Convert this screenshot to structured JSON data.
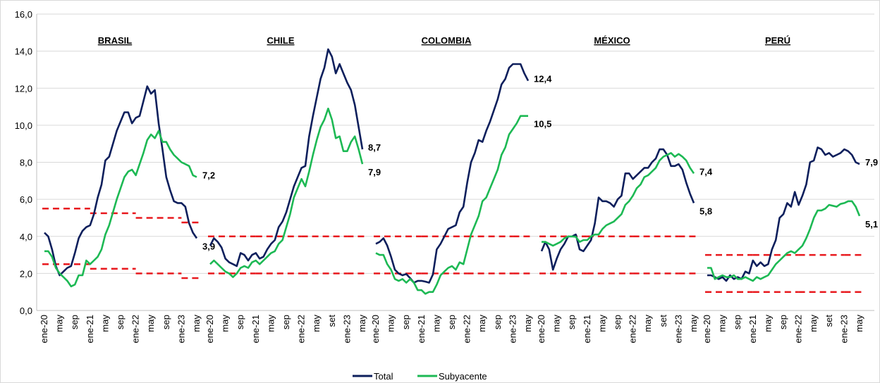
{
  "chart_data": {
    "type": "line",
    "ylim": [
      0,
      16
    ],
    "yticks": [
      {
        "value": 0,
        "label": "0,0"
      },
      {
        "value": 2,
        "label": "2,0"
      },
      {
        "value": 4,
        "label": "4,0"
      },
      {
        "value": 6,
        "label": "6,0"
      },
      {
        "value": 8,
        "label": "8,0"
      },
      {
        "value": 10,
        "label": "10,0"
      },
      {
        "value": 12,
        "label": "12,0"
      },
      {
        "value": 14,
        "label": "14,0"
      },
      {
        "value": 16,
        "label": "16,0"
      }
    ],
    "grid": true,
    "categories": [
      "ene-20",
      null,
      null,
      null,
      "may",
      null,
      null,
      null,
      "sep",
      null,
      null,
      null,
      "ene-21",
      null,
      null,
      null,
      "may",
      null,
      null,
      null,
      "sep",
      null,
      null,
      null,
      "ene-22",
      null,
      null,
      null,
      "may",
      null,
      null,
      null,
      "set",
      null,
      null,
      null,
      "ene-23",
      null,
      null,
      null,
      "may"
    ],
    "series": [
      {
        "name": "Total",
        "color": "#0d1f5c"
      },
      {
        "name": "Subyacente",
        "color": "#1db954"
      }
    ],
    "target_color": "#e8191e",
    "panels": [
      {
        "title": "BRASIL",
        "categories": [
          "ene-20",
          null,
          null,
          null,
          "may",
          null,
          null,
          null,
          "sep",
          null,
          null,
          null,
          "ene-21",
          null,
          null,
          null,
          "may",
          null,
          null,
          null,
          "sep",
          null,
          null,
          null,
          "ene-22",
          null,
          null,
          null,
          "may",
          null,
          null,
          null,
          "sep",
          null,
          null,
          null,
          "ene-23",
          null,
          null,
          null,
          "may"
        ],
        "target_low": [
          2.5,
          2.25,
          2.0,
          1.75
        ],
        "target_high": [
          5.5,
          5.25,
          5.0,
          4.75
        ],
        "series": [
          {
            "values": [
              4.2,
              4.0,
              3.3,
              2.4,
              1.9,
              2.1,
              2.3,
              2.4,
              3.1,
              3.9,
              4.3,
              4.5,
              4.6,
              5.2,
              6.1,
              6.8,
              8.1,
              8.3,
              9.0,
              9.7,
              10.2,
              10.7,
              10.7,
              10.1,
              10.4,
              10.5,
              11.3,
              12.1,
              11.7,
              11.9,
              10.1,
              8.7,
              7.2,
              6.5,
              5.9,
              5.8,
              5.8,
              5.6,
              4.7,
              4.2,
              3.9
            ],
            "last_label": "3,9"
          },
          {
            "values": [
              3.2,
              3.2,
              2.9,
              2.3,
              2.0,
              1.8,
              1.6,
              1.3,
              1.4,
              1.9,
              1.9,
              2.7,
              2.5,
              2.7,
              2.9,
              3.3,
              4.1,
              4.6,
              5.3,
              6.0,
              6.6,
              7.2,
              7.5,
              7.6,
              7.3,
              7.9,
              8.5,
              9.2,
              9.5,
              9.3,
              9.7,
              9.1,
              9.1,
              8.7,
              8.4,
              8.2,
              8.0,
              7.9,
              7.8,
              7.3,
              7.2
            ],
            "last_label": "7,2"
          }
        ]
      },
      {
        "title": "CHILE",
        "categories": [
          "ene-20",
          null,
          null,
          null,
          "may",
          null,
          null,
          null,
          "sep",
          null,
          null,
          null,
          "ene-21",
          null,
          null,
          null,
          "may",
          null,
          null,
          null,
          "sep",
          null,
          null,
          null,
          "ene-22",
          null,
          null,
          null,
          "may",
          null,
          null,
          null,
          "set",
          null,
          null,
          null,
          "ene-23",
          null,
          null,
          null,
          "may"
        ],
        "target_low": [
          2,
          2,
          2,
          2
        ],
        "target_high": [
          4,
          4,
          4,
          4
        ],
        "series": [
          {
            "values": [
              3.5,
              3.9,
              3.7,
              3.4,
              2.8,
              2.6,
              2.5,
              2.4,
              3.1,
              3.0,
              2.7,
              3.0,
              3.1,
              2.8,
              2.9,
              3.3,
              3.6,
              3.8,
              4.5,
              4.8,
              5.3,
              6.0,
              6.7,
              7.2,
              7.7,
              7.8,
              9.4,
              10.5,
              11.5,
              12.5,
              13.1,
              14.1,
              13.7,
              12.8,
              13.3,
              12.8,
              12.3,
              11.9,
              11.1,
              9.9,
              8.7
            ],
            "last_label": "8,7"
          },
          {
            "values": [
              2.5,
              2.7,
              2.5,
              2.3,
              2.1,
              2.0,
              1.8,
              2.0,
              2.3,
              2.4,
              2.3,
              2.6,
              2.7,
              2.5,
              2.7,
              2.9,
              3.1,
              3.2,
              3.6,
              3.8,
              4.5,
              5.2,
              6.1,
              6.6,
              7.1,
              6.7,
              7.5,
              8.4,
              9.2,
              9.9,
              10.3,
              10.9,
              10.3,
              9.3,
              9.4,
              8.6,
              8.6,
              9.1,
              9.4,
              8.7,
              7.9
            ],
            "last_label": "7,9"
          }
        ]
      },
      {
        "title": "COLOMBIA",
        "categories": [
          "ene-20",
          null,
          null,
          null,
          "may",
          null,
          null,
          null,
          "sep",
          null,
          null,
          null,
          "ene-21",
          null,
          null,
          null,
          "may",
          null,
          null,
          null,
          "sep",
          null,
          null,
          null,
          "ene-22",
          null,
          null,
          null,
          "may",
          null,
          null,
          null,
          "sep",
          null,
          null,
          null,
          "ene-23",
          null,
          null,
          null,
          "may"
        ],
        "target_low": [
          2,
          2,
          2,
          2
        ],
        "target_high": [
          4,
          4,
          4,
          4
        ],
        "series": [
          {
            "values": [
              3.6,
              3.7,
              3.9,
              3.5,
              2.9,
              2.2,
              2.0,
              1.9,
              1.97,
              1.75,
              1.5,
              1.6,
              1.6,
              1.56,
              1.5,
              1.95,
              3.3,
              3.6,
              4.0,
              4.4,
              4.5,
              4.6,
              5.3,
              5.6,
              6.9,
              8.0,
              8.5,
              9.2,
              9.1,
              9.7,
              10.2,
              10.8,
              11.4,
              12.2,
              12.5,
              13.1,
              13.3,
              13.3,
              13.3,
              12.8,
              12.4
            ],
            "last_label": "12,4"
          },
          {
            "values": [
              3.1,
              3.0,
              3.0,
              2.5,
              2.2,
              1.7,
              1.6,
              1.7,
              1.5,
              1.7,
              1.5,
              1.1,
              1.1,
              0.9,
              1.0,
              1.0,
              1.4,
              1.9,
              2.1,
              2.3,
              2.4,
              2.2,
              2.6,
              2.5,
              3.3,
              4.1,
              4.6,
              5.1,
              5.9,
              6.1,
              6.6,
              7.1,
              7.6,
              8.4,
              8.8,
              9.5,
              9.8,
              10.1,
              10.5,
              10.5,
              10.5
            ],
            "last_label": "10,5"
          }
        ]
      },
      {
        "title": "MÉXICO",
        "categories": [
          "ene-20",
          null,
          null,
          null,
          "may",
          null,
          null,
          null,
          "sep",
          null,
          null,
          null,
          "ene-21",
          null,
          null,
          null,
          "may",
          null,
          null,
          null,
          "sep",
          null,
          null,
          null,
          "ene-22",
          null,
          null,
          null,
          "may",
          null,
          null,
          null,
          "set",
          null,
          null,
          null,
          "ene-23",
          null,
          null,
          null,
          "may"
        ],
        "target_low": [
          2,
          2,
          2,
          2
        ],
        "target_high": [
          4,
          4,
          4,
          4
        ],
        "series": [
          {
            "values": [
              3.2,
              3.7,
              3.3,
              2.2,
              2.8,
              3.3,
              3.6,
              4.0,
              4.0,
              4.1,
              3.3,
              3.2,
              3.5,
              3.8,
              4.7,
              6.1,
              5.9,
              5.9,
              5.8,
              5.6,
              6.0,
              6.2,
              7.4,
              7.4,
              7.1,
              7.3,
              7.5,
              7.7,
              7.7,
              8.0,
              8.2,
              8.7,
              8.7,
              8.4,
              7.8,
              7.8,
              7.9,
              7.6,
              6.9,
              6.3,
              5.8
            ],
            "last_label": "5,8"
          },
          {
            "values": [
              3.7,
              3.7,
              3.6,
              3.5,
              3.6,
              3.7,
              3.9,
              4.0,
              4.0,
              3.98,
              3.7,
              3.8,
              3.8,
              4.0,
              4.1,
              4.1,
              4.4,
              4.6,
              4.7,
              4.8,
              5.0,
              5.2,
              5.7,
              5.9,
              6.2,
              6.6,
              6.8,
              7.2,
              7.3,
              7.5,
              7.7,
              8.1,
              8.3,
              8.4,
              8.5,
              8.3,
              8.45,
              8.3,
              8.1,
              7.7,
              7.4
            ],
            "last_label": "7,4"
          }
        ]
      },
      {
        "title": "PERÚ",
        "categories": [
          "ene-20",
          null,
          null,
          null,
          "may",
          null,
          null,
          null,
          "sep",
          null,
          null,
          null,
          "ene-21",
          null,
          null,
          null,
          "may",
          null,
          null,
          null,
          "sep",
          null,
          null,
          null,
          "ene-22",
          null,
          null,
          null,
          "may",
          null,
          null,
          null,
          "set",
          null,
          null,
          null,
          "ene-23",
          null,
          null,
          null,
          "may"
        ],
        "target_low": [
          1,
          1,
          1,
          1
        ],
        "target_high": [
          3,
          3,
          3,
          3
        ],
        "series": [
          {
            "values": [
              1.9,
              1.9,
              1.8,
              1.7,
              1.8,
              1.6,
              1.9,
              1.7,
              1.8,
              1.7,
              2.1,
              2.0,
              2.7,
              2.4,
              2.6,
              2.4,
              2.5,
              3.3,
              3.8,
              5.0,
              5.2,
              5.8,
              5.6,
              6.4,
              5.7,
              6.2,
              6.8,
              8.0,
              8.1,
              8.8,
              8.7,
              8.4,
              8.5,
              8.3,
              8.4,
              8.5,
              8.7,
              8.6,
              8.4,
              8.0,
              7.9
            ],
            "last_label": "7,9"
          },
          {
            "values": [
              2.3,
              2.3,
              1.7,
              1.8,
              1.9,
              1.8,
              1.8,
              1.9,
              1.7,
              1.7,
              1.8,
              1.7,
              1.6,
              1.8,
              1.7,
              1.8,
              1.9,
              2.2,
              2.5,
              2.7,
              2.9,
              3.1,
              3.2,
              3.1,
              3.3,
              3.5,
              3.9,
              4.4,
              5.0,
              5.4,
              5.4,
              5.5,
              5.7,
              5.65,
              5.6,
              5.75,
              5.8,
              5.9,
              5.9,
              5.6,
              5.1
            ],
            "last_label": "5,1"
          }
        ]
      }
    ]
  }
}
